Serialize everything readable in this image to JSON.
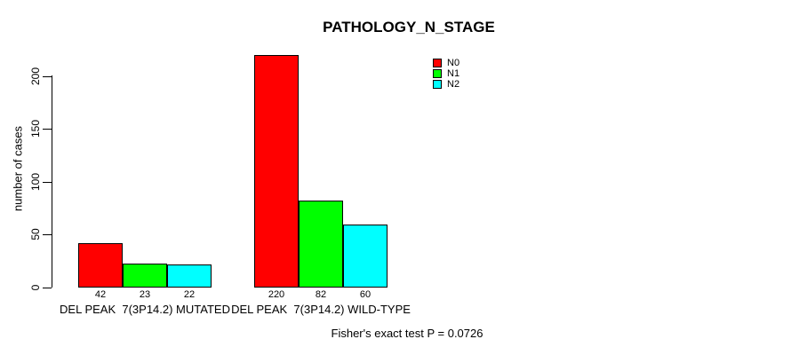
{
  "chart_data": {
    "type": "bar",
    "grouped": true,
    "title": "PATHOLOGY_N_STAGE",
    "xlabel": "",
    "ylabel": "number of cases",
    "categories": [
      "DEL PEAK  7(3P14.2) MUTATED",
      "DEL PEAK  7(3P14.2) WILD-TYPE"
    ],
    "series": [
      {
        "name": "N0",
        "color": "#ff0000",
        "values": [
          42,
          220
        ]
      },
      {
        "name": "N1",
        "color": "#00ff00",
        "values": [
          23,
          82
        ]
      },
      {
        "name": "N2",
        "color": "#00ffff",
        "values": [
          22,
          60
        ]
      }
    ],
    "bar_value_labels": [
      [
        "42",
        "23",
        "22"
      ],
      [
        "220",
        "82",
        "60"
      ]
    ],
    "yticks": [
      0,
      50,
      100,
      150,
      200
    ],
    "ylim": [
      0,
      220
    ],
    "grid": false,
    "bar_border_color": "#000000",
    "background_color": "#ffffff",
    "legend": {
      "position": "upper-right",
      "entries": [
        {
          "label": "N0",
          "color": "#ff0000"
        },
        {
          "label": "N1",
          "color": "#00ff00"
        },
        {
          "label": "N2",
          "color": "#00ffff"
        }
      ]
    },
    "annotation": "Fisher's exact test P = 0.0726"
  }
}
